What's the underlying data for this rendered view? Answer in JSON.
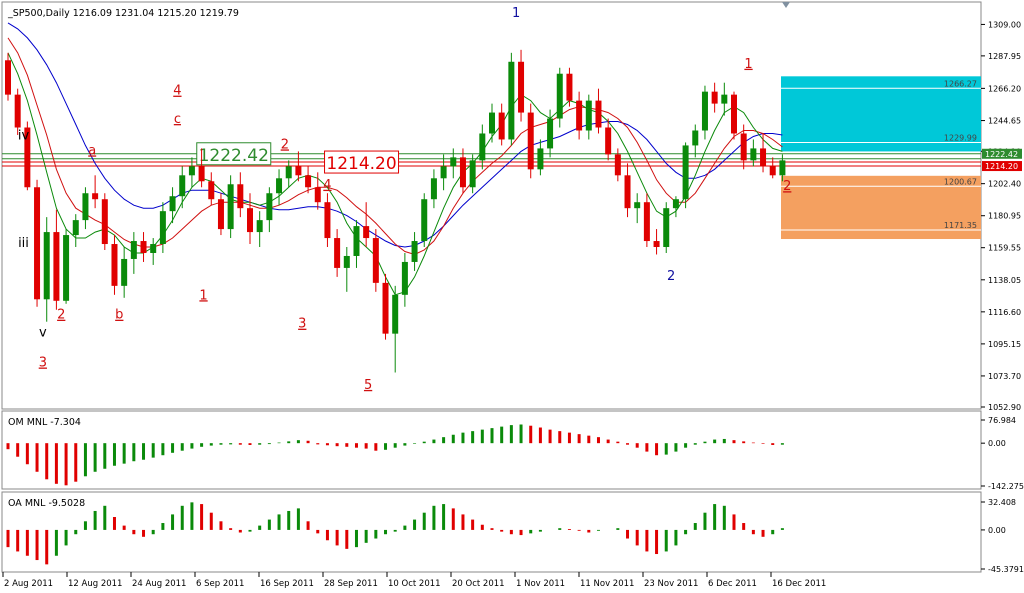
{
  "chart_data": {
    "type": "candlestick",
    "symbol_header": "_SP500,Daily  1216.09 1231.04 1215.20 1219.79",
    "y_ticks": [
      "1309.00",
      "1287.95",
      "1266.20",
      "1244.65",
      "1224.10",
      "1202.40",
      "1180.95",
      "1159.55",
      "1138.05",
      "1116.60",
      "1095.15",
      "1073.70",
      "1052.90"
    ],
    "ylim": [
      1052.9,
      1320
    ],
    "x_ticks": [
      "2 Aug 2011",
      "12 Aug 2011",
      "24 Aug 2011",
      "6 Sep 2011",
      "16 Sep 2011",
      "28 Sep 2011",
      "10 Oct 2011",
      "20 Oct 2011",
      "1 Nov 2011",
      "11 Nov 2011",
      "23 Nov 2011",
      "6 Dec 2011",
      "16 Dec 2011"
    ],
    "candles": [
      [
        1285,
        1290,
        1258,
        1262
      ],
      [
        1262,
        1266,
        1235,
        1240
      ],
      [
        1240,
        1244,
        1198,
        1200
      ],
      [
        1200,
        1205,
        1120,
        1125
      ],
      [
        1125,
        1180,
        1110,
        1170
      ],
      [
        1170,
        1185,
        1118,
        1124
      ],
      [
        1124,
        1172,
        1122,
        1168
      ],
      [
        1168,
        1182,
        1160,
        1178
      ],
      [
        1178,
        1200,
        1172,
        1196
      ],
      [
        1196,
        1208,
        1186,
        1192
      ],
      [
        1192,
        1196,
        1158,
        1162
      ],
      [
        1162,
        1168,
        1128,
        1134
      ],
      [
        1134,
        1160,
        1126,
        1152
      ],
      [
        1152,
        1170,
        1142,
        1164
      ],
      [
        1164,
        1170,
        1150,
        1156
      ],
      [
        1156,
        1166,
        1148,
        1162
      ],
      [
        1162,
        1190,
        1156,
        1184
      ],
      [
        1184,
        1200,
        1176,
        1194
      ],
      [
        1194,
        1214,
        1186,
        1208
      ],
      [
        1208,
        1220,
        1200,
        1214
      ],
      [
        1214,
        1226,
        1200,
        1204
      ],
      [
        1204,
        1210,
        1188,
        1192
      ],
      [
        1192,
        1196,
        1168,
        1172
      ],
      [
        1172,
        1208,
        1166,
        1202
      ],
      [
        1202,
        1210,
        1180,
        1186
      ],
      [
        1186,
        1196,
        1162,
        1170
      ],
      [
        1170,
        1184,
        1160,
        1178
      ],
      [
        1178,
        1200,
        1170,
        1196
      ],
      [
        1196,
        1212,
        1188,
        1206
      ],
      [
        1206,
        1218,
        1200,
        1214
      ],
      [
        1214,
        1224,
        1204,
        1208
      ],
      [
        1208,
        1214,
        1196,
        1200
      ],
      [
        1200,
        1210,
        1185,
        1190
      ],
      [
        1190,
        1196,
        1160,
        1166
      ],
      [
        1166,
        1172,
        1140,
        1146
      ],
      [
        1146,
        1160,
        1130,
        1154
      ],
      [
        1154,
        1178,
        1146,
        1174
      ],
      [
        1174,
        1190,
        1160,
        1166
      ],
      [
        1166,
        1172,
        1130,
        1136
      ],
      [
        1136,
        1142,
        1098,
        1102
      ],
      [
        1102,
        1134,
        1076,
        1128
      ],
      [
        1128,
        1156,
        1120,
        1150
      ],
      [
        1150,
        1170,
        1144,
        1164
      ],
      [
        1164,
        1196,
        1160,
        1192
      ],
      [
        1192,
        1212,
        1186,
        1206
      ],
      [
        1206,
        1222,
        1198,
        1214
      ],
      [
        1214,
        1226,
        1206,
        1220
      ],
      [
        1220,
        1226,
        1196,
        1200
      ],
      [
        1200,
        1222,
        1196,
        1218
      ],
      [
        1218,
        1242,
        1212,
        1236
      ],
      [
        1236,
        1256,
        1230,
        1250
      ],
      [
        1250,
        1256,
        1228,
        1232
      ],
      [
        1232,
        1290,
        1228,
        1284
      ],
      [
        1284,
        1292,
        1244,
        1250
      ],
      [
        1250,
        1256,
        1206,
        1212
      ],
      [
        1212,
        1232,
        1208,
        1226
      ],
      [
        1226,
        1252,
        1220,
        1246
      ],
      [
        1246,
        1280,
        1240,
        1276
      ],
      [
        1276,
        1280,
        1254,
        1258
      ],
      [
        1258,
        1264,
        1232,
        1238
      ],
      [
        1238,
        1262,
        1232,
        1258
      ],
      [
        1258,
        1266,
        1236,
        1240
      ],
      [
        1240,
        1246,
        1218,
        1222
      ],
      [
        1222,
        1226,
        1204,
        1208
      ],
      [
        1208,
        1216,
        1180,
        1186
      ],
      [
        1186,
        1196,
        1176,
        1190
      ],
      [
        1190,
        1196,
        1160,
        1164
      ],
      [
        1164,
        1172,
        1155,
        1160
      ],
      [
        1160,
        1190,
        1156,
        1186
      ],
      [
        1186,
        1194,
        1180,
        1192
      ],
      [
        1192,
        1230,
        1186,
        1228
      ],
      [
        1228,
        1242,
        1220,
        1238
      ],
      [
        1238,
        1268,
        1232,
        1264
      ],
      [
        1264,
        1270,
        1250,
        1256
      ],
      [
        1256,
        1270,
        1248,
        1262
      ],
      [
        1262,
        1264,
        1232,
        1236
      ],
      [
        1236,
        1242,
        1212,
        1218
      ],
      [
        1218,
        1232,
        1214,
        1226
      ],
      [
        1226,
        1236,
        1210,
        1214
      ],
      [
        1214,
        1220,
        1206,
        1208
      ],
      [
        1208,
        1222,
        1204,
        1218
      ]
    ],
    "ma_red": [
      1300,
      1290,
      1275,
      1255,
      1235,
      1212,
      1196,
      1186,
      1182,
      1178,
      1175,
      1170,
      1165,
      1162,
      1160,
      1160,
      1162,
      1166,
      1172,
      1178,
      1184,
      1188,
      1190,
      1190,
      1190,
      1188,
      1186,
      1186,
      1188,
      1191,
      1195,
      1198,
      1200,
      1200,
      1198,
      1193,
      1187,
      1182,
      1176,
      1169,
      1162,
      1157,
      1155,
      1158,
      1164,
      1174,
      1186,
      1196,
      1204,
      1210,
      1216,
      1221,
      1228,
      1236,
      1240,
      1242,
      1244,
      1248,
      1252,
      1254,
      1253,
      1252,
      1250,
      1246,
      1240,
      1230,
      1218,
      1205,
      1196,
      1190,
      1190,
      1196,
      1206,
      1216,
      1226,
      1234,
      1238,
      1238,
      1236,
      1232,
      1227
    ],
    "ma_green": [
      1290,
      1276,
      1258,
      1235,
      1210,
      1186,
      1172,
      1166,
      1166,
      1170,
      1172,
      1168,
      1160,
      1156,
      1156,
      1160,
      1168,
      1178,
      1190,
      1200,
      1206,
      1204,
      1198,
      1192,
      1190,
      1190,
      1188,
      1190,
      1194,
      1200,
      1206,
      1208,
      1206,
      1200,
      1190,
      1176,
      1166,
      1160,
      1154,
      1140,
      1128,
      1130,
      1140,
      1154,
      1170,
      1186,
      1200,
      1210,
      1216,
      1224,
      1234,
      1242,
      1254,
      1262,
      1258,
      1250,
      1246,
      1252,
      1258,
      1256,
      1252,
      1250,
      1244,
      1236,
      1224,
      1210,
      1196,
      1184,
      1180,
      1184,
      1194,
      1208,
      1224,
      1238,
      1250,
      1254,
      1250,
      1240,
      1232,
      1226,
      1224
    ],
    "ma_blue": [
      1310,
      1306,
      1300,
      1292,
      1282,
      1270,
      1256,
      1242,
      1228,
      1216,
      1206,
      1198,
      1192,
      1188,
      1186,
      1186,
      1188,
      1192,
      1196,
      1198,
      1198,
      1198,
      1196,
      1194,
      1192,
      1190,
      1188,
      1186,
      1185,
      1185,
      1186,
      1187,
      1187,
      1186,
      1184,
      1181,
      1177,
      1172,
      1168,
      1164,
      1161,
      1160,
      1161,
      1164,
      1168,
      1174,
      1181,
      1188,
      1194,
      1200,
      1206,
      1212,
      1218,
      1224,
      1228,
      1230,
      1232,
      1234,
      1237,
      1240,
      1242,
      1243,
      1244,
      1244,
      1242,
      1238,
      1232,
      1224,
      1216,
      1210,
      1206,
      1206,
      1208,
      1212,
      1218,
      1224,
      1230,
      1234,
      1236,
      1236,
      1235
    ],
    "levels": {
      "green": "1222.42",
      "red": "1214.20",
      "cyan_top": "1266.27",
      "cyan_bottom": "1229.99",
      "orange_top": "1200.67",
      "orange_bottom": "1171.35"
    },
    "level_tags": [
      {
        "text": "1222.42",
        "color": "#2e8b2e"
      },
      {
        "text": "1214.20",
        "color": "#e00000"
      }
    ],
    "price_boxes": {
      "green": "1222.42",
      "red": "1214.20"
    },
    "wave_labels": [
      {
        "text": "1",
        "i": 52.5,
        "p": 1314,
        "color": "#1010a0",
        "u": false
      },
      {
        "text": "1",
        "i": 76.5,
        "p": 1280,
        "color": "#d01010",
        "u": true
      },
      {
        "text": "2",
        "i": 68.5,
        "p": 1138,
        "color": "#1010a0",
        "u": false
      },
      {
        "text": "2",
        "i": 80.5,
        "p": 1198,
        "color": "#d01010",
        "u": true
      },
      {
        "text": "iv",
        "i": 1.6,
        "p": 1232,
        "color": "#000000",
        "u": false
      },
      {
        "text": "iii",
        "i": 1.6,
        "p": 1160,
        "color": "#000000",
        "u": false
      },
      {
        "text": "v",
        "i": 3.6,
        "p": 1100,
        "color": "#000000",
        "u": false
      },
      {
        "text": "3",
        "i": 3.6,
        "p": 1080,
        "color": "#d01010",
        "u": true
      },
      {
        "text": "2",
        "i": 5.5,
        "p": 1112,
        "color": "#d01010",
        "u": true
      },
      {
        "text": "a",
        "i": 8.7,
        "p": 1222,
        "color": "#d01010",
        "u": true
      },
      {
        "text": "b",
        "i": 11.5,
        "p": 1112,
        "color": "#d01010",
        "u": true
      },
      {
        "text": "4",
        "i": 17.5,
        "p": 1262,
        "color": "#d01010",
        "u": true
      },
      {
        "text": "c",
        "i": 17.5,
        "p": 1243,
        "color": "#d01010",
        "u": true
      },
      {
        "text": "1",
        "i": 20.2,
        "p": 1125,
        "color": "#d01010",
        "u": true
      },
      {
        "text": "2",
        "i": 28.6,
        "p": 1226,
        "color": "#d01010",
        "u": true
      },
      {
        "text": "3",
        "i": 30.4,
        "p": 1106,
        "color": "#d01010",
        "u": true
      },
      {
        "text": "4",
        "i": 33.0,
        "p": 1199,
        "color": "#d01010",
        "u": true
      },
      {
        "text": "5",
        "i": 37.2,
        "p": 1065,
        "color": "#d01010",
        "u": true
      }
    ],
    "ind1": {
      "label": "OM MNL -7.304",
      "ticks": [
        "76.984",
        "0.00",
        "-142.275"
      ],
      "range": [
        -142.275,
        76.984
      ],
      "values": [
        -20,
        -45,
        -70,
        -95,
        -120,
        -135,
        -140,
        -128,
        -110,
        -95,
        -85,
        -75,
        -68,
        -60,
        -55,
        -48,
        -40,
        -32,
        -25,
        -18,
        -12,
        -8,
        -5,
        -4,
        -5,
        -6,
        -5,
        -3,
        2,
        6,
        10,
        8,
        -4,
        -7,
        -10,
        -12,
        -15,
        -18,
        -25,
        -22,
        -15,
        -8,
        -2,
        5,
        12,
        20,
        28,
        35,
        40,
        45,
        50,
        55,
        60,
        62,
        58,
        52,
        45,
        40,
        35,
        30,
        25,
        20,
        12,
        5,
        -5,
        -15,
        -28,
        -40,
        -38,
        -28,
        -15,
        -5,
        5,
        12,
        14,
        10,
        6,
        2,
        -2,
        -6,
        -5
      ],
      "up": [
        0,
        0,
        0,
        0,
        0,
        0,
        0,
        0,
        1,
        1,
        1,
        1,
        1,
        1,
        1,
        1,
        1,
        1,
        1,
        1,
        1,
        1,
        1,
        1,
        0,
        0,
        1,
        1,
        1,
        1,
        1,
        0,
        0,
        0,
        0,
        0,
        0,
        0,
        0,
        1,
        1,
        1,
        1,
        1,
        1,
        1,
        1,
        1,
        1,
        1,
        1,
        1,
        1,
        1,
        0,
        0,
        0,
        0,
        0,
        0,
        0,
        0,
        0,
        0,
        0,
        0,
        0,
        0,
        1,
        1,
        1,
        1,
        1,
        1,
        1,
        0,
        0,
        0,
        0,
        0,
        1
      ]
    },
    "ind2": {
      "label": "OA MNL -9.5028",
      "ticks": [
        "32.408",
        "0.00",
        "-45.3791"
      ],
      "range": [
        -45.3791,
        32.408
      ],
      "values": [
        -20,
        -25,
        -30,
        -35,
        -40,
        -30,
        -18,
        -5,
        10,
        22,
        28,
        15,
        5,
        -5,
        -8,
        -5,
        8,
        18,
        28,
        32,
        30,
        20,
        10,
        2,
        -3,
        -2,
        5,
        12,
        18,
        22,
        25,
        10,
        -4,
        -12,
        -18,
        -22,
        -20,
        -15,
        -10,
        -5,
        -2,
        5,
        12,
        20,
        28,
        30,
        25,
        18,
        12,
        6,
        2,
        -2,
        -5,
        -6,
        -4,
        -2,
        0,
        2,
        1,
        -1,
        -3,
        -1,
        0,
        2,
        -10,
        -18,
        -25,
        -28,
        -25,
        -18,
        -5,
        8,
        20,
        30,
        28,
        18,
        8,
        -5,
        -8,
        -5,
        2
      ],
      "up": [
        0,
        0,
        0,
        0,
        0,
        1,
        1,
        1,
        1,
        1,
        1,
        0,
        0,
        0,
        0,
        1,
        1,
        1,
        1,
        1,
        0,
        0,
        0,
        0,
        0,
        1,
        1,
        1,
        1,
        1,
        1,
        0,
        0,
        0,
        0,
        0,
        1,
        1,
        1,
        1,
        1,
        1,
        1,
        1,
        1,
        1,
        0,
        0,
        0,
        0,
        0,
        0,
        0,
        0,
        1,
        1,
        1,
        1,
        0,
        0,
        0,
        1,
        1,
        1,
        0,
        0,
        0,
        0,
        1,
        1,
        1,
        1,
        1,
        1,
        1,
        0,
        0,
        0,
        0,
        1,
        1
      ]
    },
    "colors": {
      "up": "#0a8a0a",
      "down": "#e00000",
      "ma_red": "#d01010",
      "ma_green": "#0a8a0a",
      "ma_blue": "#0000cc",
      "cyan": "#00c8d8",
      "orange": "#f4a060",
      "axis": "#000000"
    }
  }
}
